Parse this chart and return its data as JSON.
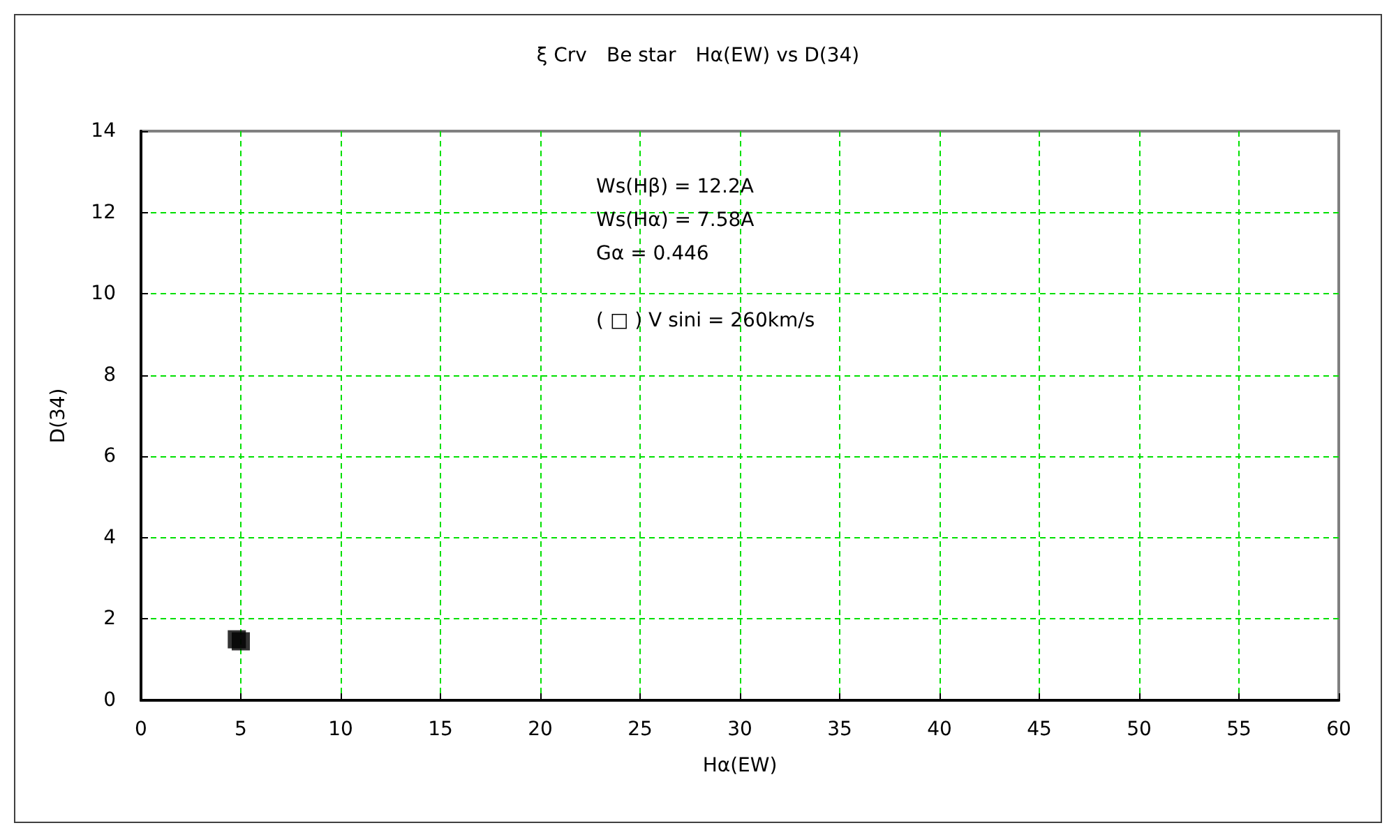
{
  "chart_data": {
    "type": "scatter",
    "title": "ξ Crv　Be star　Hα(EW) vs D(34)",
    "xlabel": "Hα(EW)",
    "ylabel": "D(34)",
    "x": [
      4.8,
      5.0
    ],
    "values": [
      1.5,
      1.45
    ],
    "color": "#000000",
    "marker": "square",
    "xlim": [
      0,
      60
    ],
    "xticks": [
      0,
      5,
      10,
      15,
      20,
      25,
      30,
      35,
      40,
      45,
      50,
      55,
      60
    ],
    "ylim": [
      0,
      14
    ],
    "yticks": [
      0,
      2,
      4,
      6,
      8,
      10,
      12,
      14
    ],
    "grid": true,
    "annotations": [
      "Ws(Hβ) = 12.2A",
      "Ws(Hα) = 7.58A",
      "Gα = 0.446",
      "( □ ) V sini = 260km/s"
    ]
  }
}
